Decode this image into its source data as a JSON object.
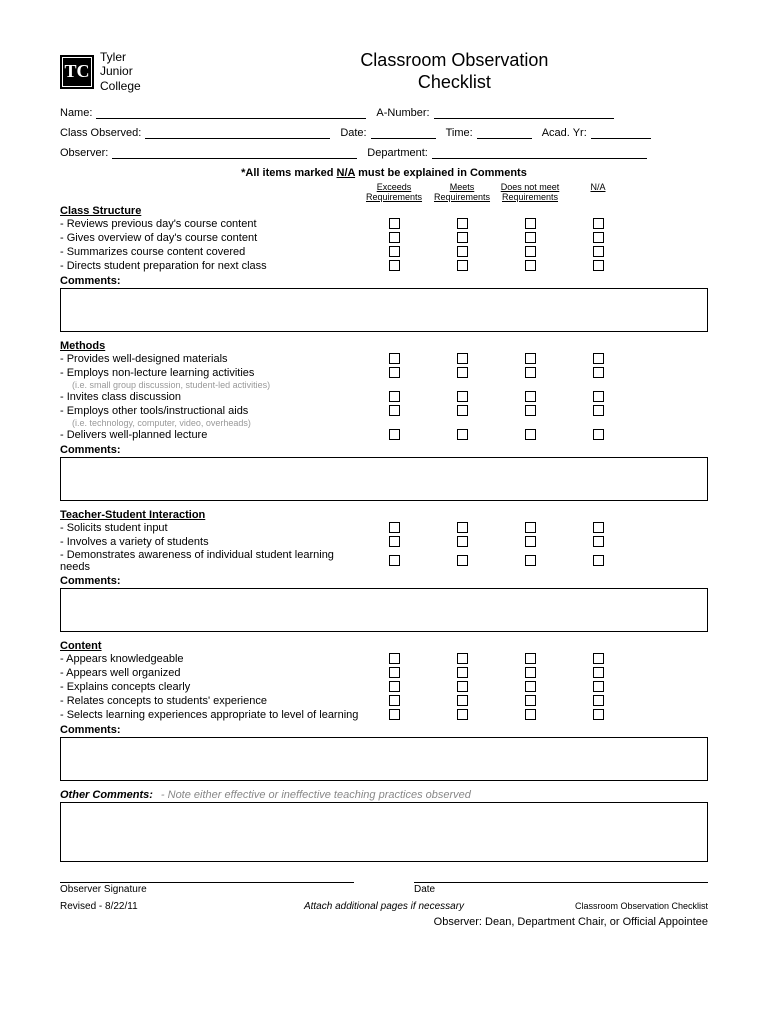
{
  "header": {
    "logo_letters": "TC",
    "college_line1": "Tyler",
    "college_line2": "Junior",
    "college_line3": "College",
    "title_line1": "Classroom Observation",
    "title_line2": "Checklist"
  },
  "fields": {
    "name": "Name:",
    "anumber": "A-Number:",
    "class_observed": "Class Observed:",
    "date": "Date:",
    "time": "Time:",
    "acad_yr": "Acad. Yr:",
    "observer": "Observer:",
    "department": "Department:"
  },
  "na_note_prefix": "*All items marked ",
  "na_note_na": "N/A",
  "na_note_suffix": " must be explained in Comments",
  "col_headers": [
    "Exceeds Requirements",
    "Meets Requirements",
    "Does not meet Requirements",
    "N/A"
  ],
  "sections": [
    {
      "title": "Class  Structure",
      "items": [
        {
          "text": "- Reviews previous day's course content"
        },
        {
          "text": "- Gives overview of day's course content"
        },
        {
          "text": "- Summarizes course content covered"
        },
        {
          "text": "- Directs student preparation for next class"
        }
      ]
    },
    {
      "title": "Methods",
      "items": [
        {
          "text": "- Provides well-designed materials"
        },
        {
          "text": "- Employs non-lecture learning activities",
          "sub": "(i.e. small group discussion, student-led activities)"
        },
        {
          "text": "- Invites class discussion"
        },
        {
          "text": "- Employs other tools/instructional aids",
          "sub": "(i.e. technology, computer, video, overheads)"
        },
        {
          "text": "- Delivers well-planned lecture"
        }
      ]
    },
    {
      "title": "Teacher-Student Interaction",
      "items": [
        {
          "text": "- Solicits student input"
        },
        {
          "text": "- Involves a variety of students"
        },
        {
          "text": "- Demonstrates awareness of individual student learning needs"
        }
      ]
    },
    {
      "title": "Content",
      "items": [
        {
          "text": "- Appears knowledgeable"
        },
        {
          "text": "- Appears well organized"
        },
        {
          "text": "- Explains concepts clearly"
        },
        {
          "text": "- Relates concepts to students' experience"
        },
        {
          "text": "- Selects learning experiences appropriate to level of learning"
        }
      ]
    }
  ],
  "comments_label": "Comments:",
  "other_comments_label": "Other Comments:",
  "other_comments_note": "- Note either effective or ineffective teaching practices observed",
  "signature": {
    "observer": "Observer  Signature",
    "date": "Date"
  },
  "footer": {
    "revised": "Revised -  8/22/11",
    "attach": "Attach additional pages if necessary",
    "doc_title": "Classroom Observation Checklist",
    "observer_note": "Observer: Dean, Department Chair, or Official Appointee"
  }
}
